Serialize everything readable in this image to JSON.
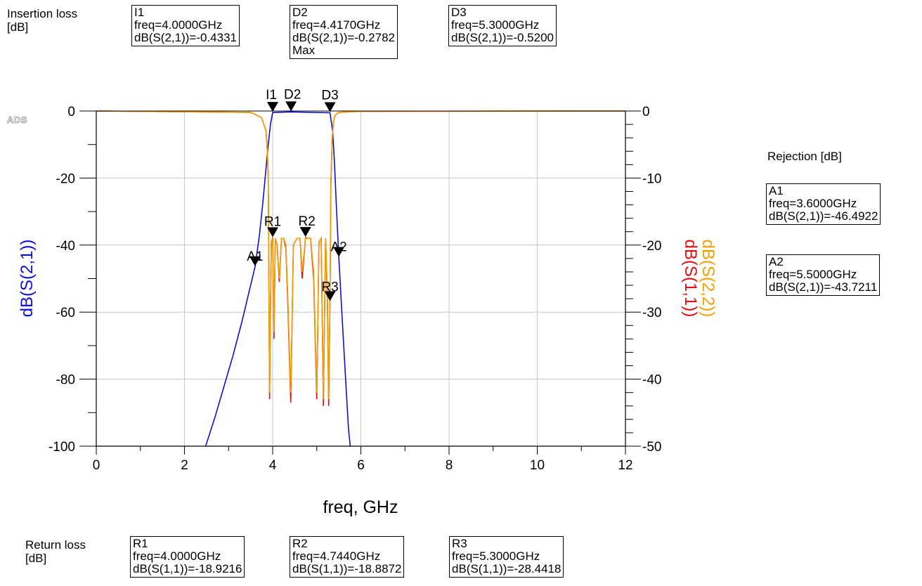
{
  "groups": {
    "insertion_label": "Insertion loss\n[dB]",
    "rejection_label": "Rejection [dB]",
    "return_label": "Return loss\n[dB]"
  },
  "watermark": "ADS",
  "markers": [
    {
      "name": "I1",
      "freq_text": "freq=4.0000GHz",
      "value_text": "dB(S(2,1))=-0.4331",
      "extra": ""
    },
    {
      "name": "D2",
      "freq_text": "freq=4.4170GHz",
      "value_text": "dB(S(2,1))=-0.2782",
      "extra": "Max"
    },
    {
      "name": "D3",
      "freq_text": "freq=5.3000GHz",
      "value_text": "dB(S(2,1))=-0.5200",
      "extra": ""
    },
    {
      "name": "A1",
      "freq_text": "freq=3.6000GHz",
      "value_text": "dB(S(2,1))=-46.4922",
      "extra": ""
    },
    {
      "name": "A2",
      "freq_text": "freq=5.5000GHz",
      "value_text": "dB(S(2,1))=-43.7211",
      "extra": ""
    },
    {
      "name": "R1",
      "freq_text": "freq=4.0000GHz",
      "value_text": "dB(S(1,1))=-18.9216",
      "extra": ""
    },
    {
      "name": "R2",
      "freq_text": "freq=4.7440GHz",
      "value_text": "dB(S(1,1))=-18.8872",
      "extra": ""
    },
    {
      "name": "R3",
      "freq_text": "freq=5.3000GHz",
      "value_text": "dB(S(1,1))=-28.4418",
      "extra": ""
    }
  ],
  "colors": {
    "s21": "#1010cc",
    "s11": "#e01010",
    "s22": "#f0a000",
    "grid": "#c8c8c8"
  },
  "chart_data": {
    "type": "line",
    "xlabel": "freq, GHz",
    "ylabel_left": "dB(S(2,1))",
    "ylabel_right": [
      "dB(S(2,2))",
      "dB(S(1,1))"
    ],
    "xlim": [
      0,
      12
    ],
    "ylim_left": [
      -100,
      0
    ],
    "ylim_right": [
      -50,
      0
    ],
    "x_ticks": [
      "0",
      "2",
      "4",
      "6",
      "8",
      "10",
      "12"
    ],
    "y_left_ticks": [
      "0",
      "-20",
      "-40",
      "-60",
      "-80",
      "-100"
    ],
    "y_right_ticks": [
      "0",
      "-10",
      "-20",
      "-30",
      "-40",
      "-50"
    ],
    "grid": true,
    "series": [
      {
        "name": "dB(S(2,1))",
        "axis": "left",
        "x": [
          2.48,
          2.7,
          2.9,
          3.1,
          3.3,
          3.5,
          3.6,
          3.7,
          3.78,
          3.85,
          3.9,
          3.95,
          4.0,
          4.417,
          5.3,
          5.36,
          5.4,
          5.45,
          5.5,
          5.56,
          5.62,
          5.68,
          5.72,
          5.76
        ],
        "y": [
          -100,
          -91,
          -82,
          -73,
          -63,
          -52,
          -46.5,
          -37,
          -27,
          -17,
          -10,
          -4,
          -0.43,
          -0.28,
          -0.52,
          -6,
          -15,
          -30,
          -43.7,
          -58,
          -72,
          -86,
          -95,
          -100
        ]
      },
      {
        "name": "dB(S(1,1))",
        "axis": "right",
        "x": [
          0,
          3.5,
          3.75,
          3.85,
          3.88,
          3.9,
          3.93,
          3.95,
          3.97,
          4.0,
          4.03,
          4.06,
          4.1,
          4.15,
          4.2,
          4.25,
          4.3,
          4.35,
          4.41,
          4.47,
          4.55,
          4.62,
          4.67,
          4.744,
          4.8,
          4.86,
          4.93,
          5.0,
          5.05,
          5.1,
          5.15,
          5.2,
          5.24,
          5.27,
          5.3,
          5.32,
          5.35,
          5.38,
          5.42,
          5.5,
          6,
          12
        ],
        "y": [
          0,
          -0.2,
          -1,
          -3,
          -6,
          -10,
          -43,
          -30,
          -19.5,
          -18.9,
          -34,
          -19,
          -20,
          -25.5,
          -19,
          -19,
          -20.5,
          -30,
          -43.5,
          -20,
          -19,
          -19,
          -25,
          -18.9,
          -19,
          -19,
          -25,
          -43,
          -19.5,
          -19,
          -44,
          -19,
          -28,
          -44,
          -28.4,
          -11,
          -4,
          -1.5,
          -0.6,
          -0.2,
          -0.05,
          0
        ]
      },
      {
        "name": "dB(S(2,2))",
        "axis": "right",
        "x": [
          0,
          3.5,
          3.75,
          3.85,
          3.88,
          3.9,
          3.93,
          3.95,
          3.97,
          4.0,
          4.03,
          4.06,
          4.1,
          4.15,
          4.2,
          4.25,
          4.3,
          4.35,
          4.41,
          4.47,
          4.55,
          4.62,
          4.67,
          4.744,
          4.8,
          4.86,
          4.93,
          5.0,
          5.05,
          5.1,
          5.15,
          5.2,
          5.24,
          5.27,
          5.3,
          5.32,
          5.35,
          5.38,
          5.42,
          5.5,
          6,
          12
        ],
        "y": [
          0,
          -0.2,
          -1,
          -3,
          -6,
          -10,
          -42,
          -29,
          -19.5,
          -19,
          -33,
          -19,
          -20,
          -25,
          -19,
          -19,
          -20,
          -29,
          -42,
          -20,
          -19,
          -19,
          -24,
          -19,
          -19,
          -19,
          -24,
          -42,
          -19.5,
          -19,
          -43,
          -19,
          -27,
          -43,
          -28,
          -11,
          -4,
          -1.5,
          -0.6,
          -0.2,
          -0.05,
          0
        ]
      }
    ],
    "marker_points": [
      {
        "name": "I1",
        "x": 4.0,
        "y": -0.4331,
        "axis": "left"
      },
      {
        "name": "D2",
        "x": 4.417,
        "y": -0.2782,
        "axis": "left"
      },
      {
        "name": "D3",
        "x": 5.3,
        "y": -0.52,
        "axis": "left"
      },
      {
        "name": "A1",
        "x": 3.6,
        "y": -46.4922,
        "axis": "left"
      },
      {
        "name": "A2",
        "x": 5.5,
        "y": -43.7211,
        "axis": "left"
      },
      {
        "name": "R1",
        "x": 4.0,
        "y": -18.9216,
        "axis": "right"
      },
      {
        "name": "R2",
        "x": 4.744,
        "y": -18.8872,
        "axis": "right"
      },
      {
        "name": "R3",
        "x": 5.3,
        "y": -28.4418,
        "axis": "right"
      }
    ]
  }
}
